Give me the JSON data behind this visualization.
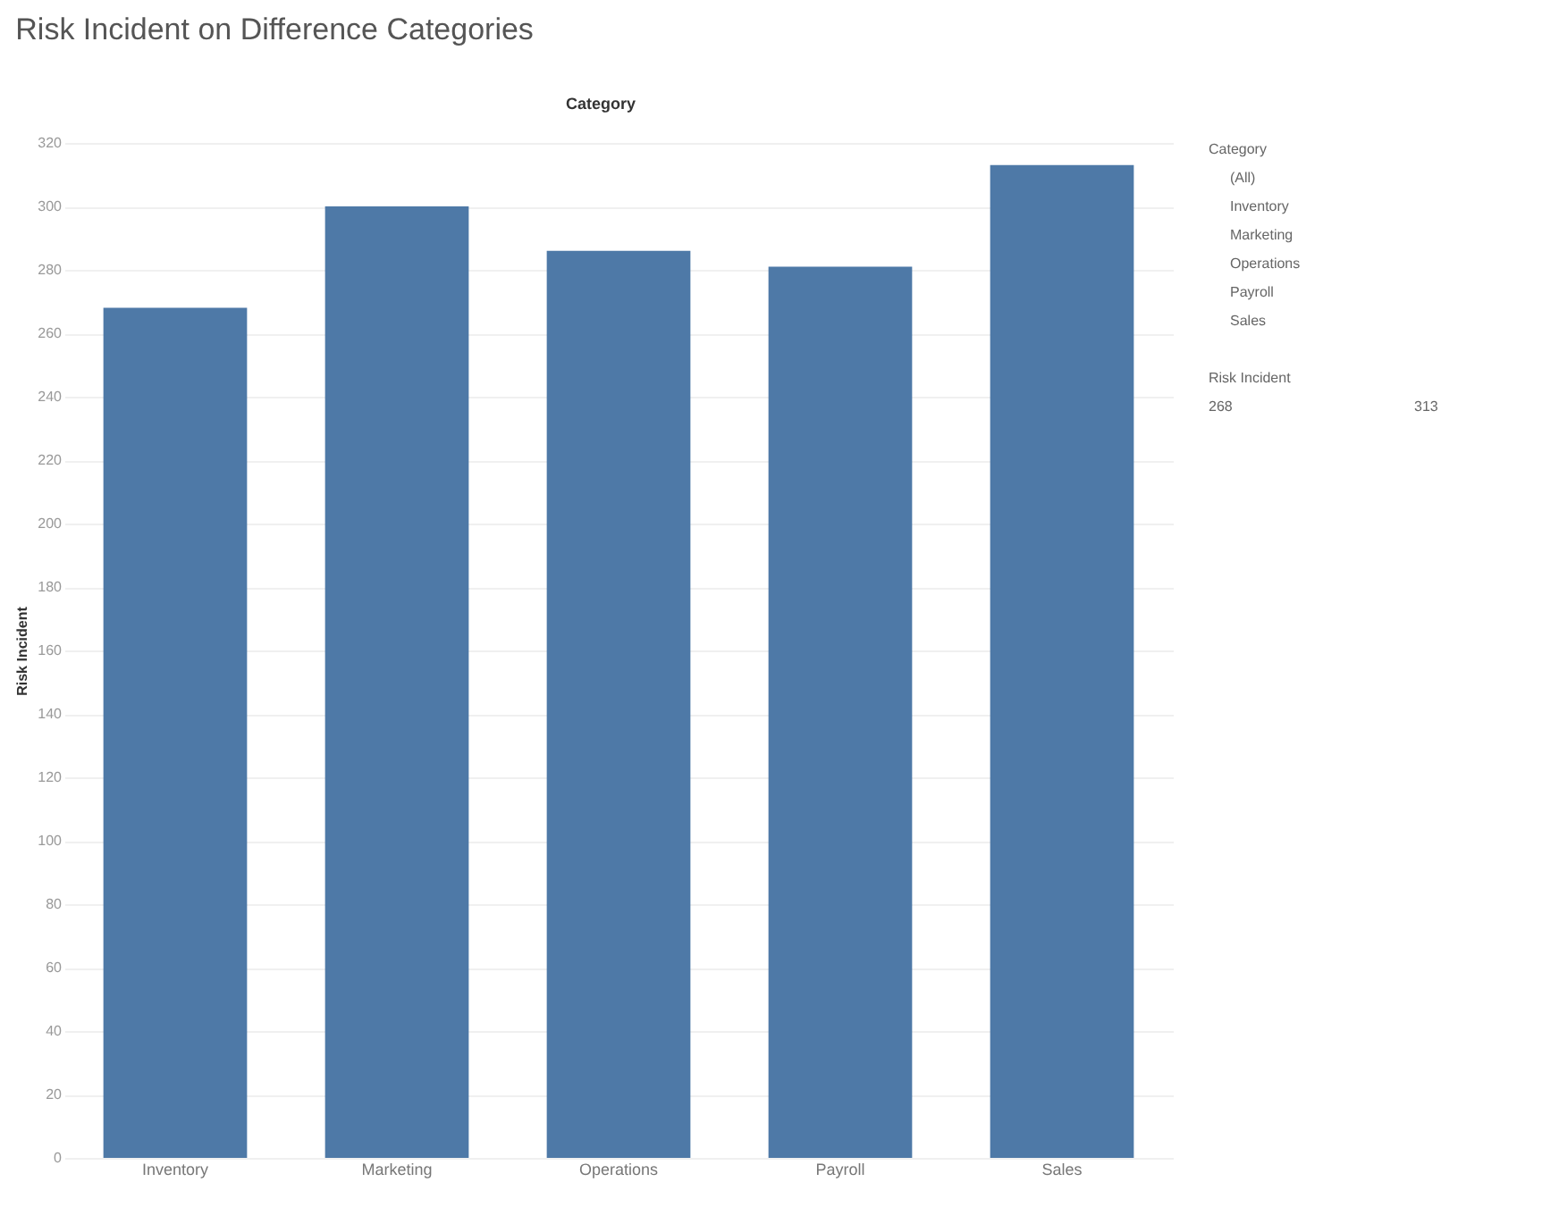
{
  "chart_data": {
    "type": "bar",
    "title": "Risk Incident on Difference Categories",
    "xlabel": "Category",
    "ylabel": "Risk Incident",
    "categories": [
      "Inventory",
      "Marketing",
      "Operations",
      "Payroll",
      "Sales"
    ],
    "values": [
      268,
      300,
      286,
      281,
      313
    ],
    "color": "#4e79a7",
    "ylim": [
      0,
      320
    ],
    "yticks": [
      0,
      20,
      40,
      60,
      80,
      100,
      120,
      140,
      160,
      180,
      200,
      220,
      240,
      260,
      280,
      300,
      320
    ],
    "grid": "y",
    "annotations": [
      "Category",
      "(All)",
      "Inventory",
      "Marketing",
      "Operations",
      "Payroll",
      "Sales",
      "Risk Incident",
      "268",
      "313"
    ]
  }
}
